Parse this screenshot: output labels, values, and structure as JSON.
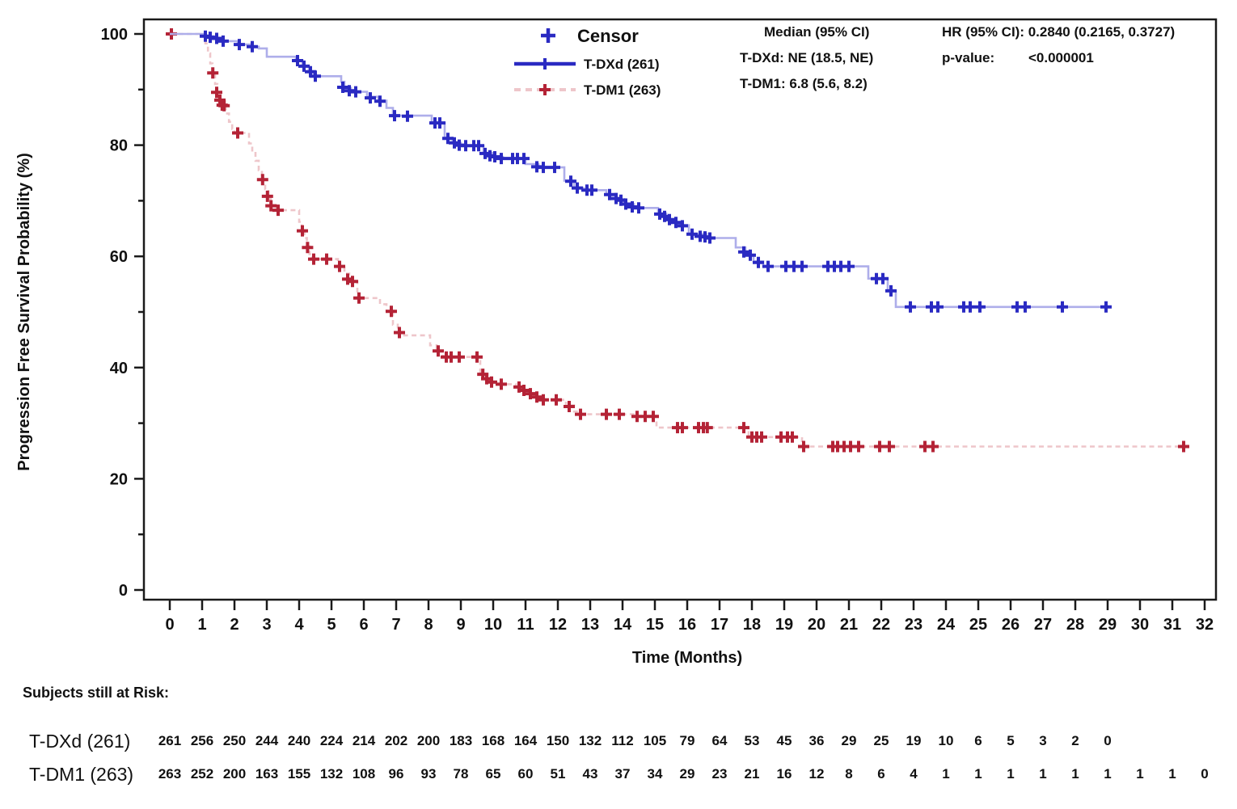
{
  "chart_data": {
    "type": "line",
    "subtype": "kaplan-meier-step",
    "title": "",
    "xlabel": "Time (Months)",
    "ylabel": "Progression Free Survival Probability (%)",
    "xlim": [
      0,
      32
    ],
    "ylim": [
      0,
      100
    ],
    "xticks": [
      0,
      1,
      2,
      3,
      4,
      5,
      6,
      7,
      8,
      9,
      10,
      11,
      12,
      13,
      14,
      15,
      16,
      17,
      18,
      19,
      20,
      21,
      22,
      23,
      24,
      25,
      26,
      27,
      28,
      29,
      30,
      31,
      32
    ],
    "yticks_major": [
      0,
      20,
      40,
      60,
      80,
      100
    ],
    "ytick_minor_step": 10,
    "grid": "off",
    "legend_position": "top-center",
    "legend": {
      "censor_symbol": "+",
      "censor_label": "Censor"
    },
    "stats": {
      "median_header": "Median (95% CI)",
      "median_tdxd": "T-DXd: NE (18.5, NE)",
      "median_tdm1": "T-DM1: 6.8 (5.6, 8.2)",
      "hr_line": "HR (95% CI): 0.2840 (0.2165, 0.3727)",
      "pvalue_label": "p-value:",
      "pvalue_value": "<0.000001"
    },
    "colors": {
      "tdxd_mark": "#2a2ac2",
      "tdxd_line": "#aeaeea",
      "tdm1_mark": "#b42336",
      "tdm1_line": "#eec6ca",
      "axis": "#1a1a1a"
    },
    "series": [
      {
        "name": "T-DXd (261)",
        "slug": "tdxd",
        "style": "solid",
        "mark_color": "#2a2ac2",
        "line_color": "#aeaeea",
        "end_time": 29.0,
        "steps": [
          [
            0,
            100
          ],
          [
            1.1,
            99.6
          ],
          [
            1.35,
            99.2
          ],
          [
            1.6,
            98.7
          ],
          [
            2.1,
            98.1
          ],
          [
            2.5,
            97.7
          ],
          [
            2.75,
            97.4
          ],
          [
            3.0,
            95.9
          ],
          [
            3.9,
            95.3
          ],
          [
            4.1,
            94.3
          ],
          [
            4.3,
            93.2
          ],
          [
            4.45,
            92.4
          ],
          [
            5.3,
            91.4
          ],
          [
            5.4,
            90.3
          ],
          [
            5.6,
            89.6
          ],
          [
            6.1,
            88.7
          ],
          [
            6.45,
            88.0
          ],
          [
            6.7,
            86.7
          ],
          [
            6.9,
            85.3
          ],
          [
            8.1,
            84.0
          ],
          [
            8.5,
            81.3
          ],
          [
            8.75,
            80.4
          ],
          [
            9.0,
            79.9
          ],
          [
            9.7,
            78.6
          ],
          [
            10.0,
            77.9
          ],
          [
            10.3,
            77.6
          ],
          [
            11.0,
            76.6
          ],
          [
            11.4,
            76.0
          ],
          [
            12.2,
            73.6
          ],
          [
            12.5,
            72.3
          ],
          [
            12.8,
            71.9
          ],
          [
            13.5,
            71.1
          ],
          [
            13.8,
            70.3
          ],
          [
            14.05,
            69.4
          ],
          [
            14.35,
            68.7
          ],
          [
            15.1,
            67.7
          ],
          [
            15.35,
            66.7
          ],
          [
            15.6,
            66.1
          ],
          [
            15.8,
            65.6
          ],
          [
            16.05,
            64.0
          ],
          [
            16.6,
            63.3
          ],
          [
            17.5,
            61.6
          ],
          [
            17.8,
            60.3
          ],
          [
            18.05,
            59.1
          ],
          [
            18.35,
            58.2
          ],
          [
            21.6,
            56.0
          ],
          [
            22.2,
            53.8
          ],
          [
            22.45,
            50.9
          ]
        ],
        "censors": [
          [
            1.1,
            99.6
          ],
          [
            1.25,
            99.4
          ],
          [
            1.45,
            99.2
          ],
          [
            1.65,
            98.7
          ],
          [
            2.15,
            98.1
          ],
          [
            2.55,
            97.7
          ],
          [
            3.95,
            95.2
          ],
          [
            4.15,
            94.2
          ],
          [
            4.35,
            93.2
          ],
          [
            4.5,
            92.4
          ],
          [
            5.35,
            90.4
          ],
          [
            5.55,
            89.8
          ],
          [
            5.75,
            89.6
          ],
          [
            6.2,
            88.5
          ],
          [
            6.5,
            87.9
          ],
          [
            6.95,
            85.3
          ],
          [
            7.35,
            85.2
          ],
          [
            8.2,
            84.0
          ],
          [
            8.35,
            84.0
          ],
          [
            8.6,
            81.2
          ],
          [
            8.8,
            80.4
          ],
          [
            8.95,
            80.0
          ],
          [
            9.15,
            79.9
          ],
          [
            9.4,
            79.9
          ],
          [
            9.55,
            79.9
          ],
          [
            9.75,
            78.5
          ],
          [
            9.9,
            78.1
          ],
          [
            10.05,
            77.9
          ],
          [
            10.25,
            77.6
          ],
          [
            10.6,
            77.6
          ],
          [
            10.75,
            77.6
          ],
          [
            10.95,
            77.6
          ],
          [
            11.35,
            76.1
          ],
          [
            11.55,
            76.0
          ],
          [
            11.9,
            76.0
          ],
          [
            12.4,
            73.5
          ],
          [
            12.6,
            72.3
          ],
          [
            12.9,
            71.9
          ],
          [
            13.05,
            71.9
          ],
          [
            13.6,
            71.1
          ],
          [
            13.8,
            70.4
          ],
          [
            13.95,
            70.1
          ],
          [
            14.1,
            69.4
          ],
          [
            14.3,
            68.9
          ],
          [
            14.5,
            68.7
          ],
          [
            15.15,
            67.6
          ],
          [
            15.3,
            67.2
          ],
          [
            15.45,
            66.6
          ],
          [
            15.65,
            66.1
          ],
          [
            15.85,
            65.5
          ],
          [
            16.15,
            64.0
          ],
          [
            16.4,
            63.6
          ],
          [
            16.55,
            63.5
          ],
          [
            16.7,
            63.3
          ],
          [
            17.75,
            60.8
          ],
          [
            17.95,
            60.2
          ],
          [
            18.2,
            58.9
          ],
          [
            18.5,
            58.2
          ],
          [
            19.05,
            58.2
          ],
          [
            19.3,
            58.2
          ],
          [
            19.55,
            58.2
          ],
          [
            20.35,
            58.2
          ],
          [
            20.55,
            58.2
          ],
          [
            20.75,
            58.2
          ],
          [
            21.0,
            58.2
          ],
          [
            21.85,
            56.0
          ],
          [
            22.05,
            56.0
          ],
          [
            22.3,
            53.8
          ],
          [
            22.9,
            50.9
          ],
          [
            23.55,
            50.9
          ],
          [
            23.75,
            50.9
          ],
          [
            24.55,
            50.9
          ],
          [
            24.75,
            50.9
          ],
          [
            25.05,
            50.9
          ],
          [
            26.2,
            50.9
          ],
          [
            26.45,
            50.9
          ],
          [
            27.6,
            50.9
          ],
          [
            28.95,
            50.9
          ]
        ]
      },
      {
        "name": "T-DM1 (263)",
        "slug": "tdm1",
        "style": "dashed",
        "mark_color": "#b42336",
        "line_color": "#eec6ca",
        "end_time": 31.35,
        "steps": [
          [
            0,
            100
          ],
          [
            1.0,
            99.6
          ],
          [
            1.1,
            98.3
          ],
          [
            1.18,
            96.5
          ],
          [
            1.25,
            94.7
          ],
          [
            1.32,
            93.0
          ],
          [
            1.4,
            91.0
          ],
          [
            1.47,
            89.4
          ],
          [
            1.54,
            88.1
          ],
          [
            1.63,
            87.1
          ],
          [
            1.73,
            85.7
          ],
          [
            1.83,
            84.2
          ],
          [
            1.93,
            82.9
          ],
          [
            2.0,
            82.2
          ],
          [
            2.45,
            80.3
          ],
          [
            2.55,
            78.8
          ],
          [
            2.65,
            77.2
          ],
          [
            2.75,
            75.5
          ],
          [
            2.85,
            73.8
          ],
          [
            2.95,
            72.1
          ],
          [
            3.05,
            70.3
          ],
          [
            3.12,
            69.1
          ],
          [
            3.3,
            68.3
          ],
          [
            4.0,
            66.2
          ],
          [
            4.08,
            64.8
          ],
          [
            4.16,
            63.3
          ],
          [
            4.24,
            61.8
          ],
          [
            4.32,
            60.4
          ],
          [
            4.4,
            59.5
          ],
          [
            5.2,
            58.2
          ],
          [
            5.4,
            56.9
          ],
          [
            5.55,
            55.5
          ],
          [
            5.8,
            52.5
          ],
          [
            6.5,
            51.4
          ],
          [
            6.7,
            50.2
          ],
          [
            6.9,
            47.7
          ],
          [
            7.05,
            46.3
          ],
          [
            7.2,
            45.8
          ],
          [
            8.05,
            44.0
          ],
          [
            8.25,
            43.0
          ],
          [
            8.45,
            41.9
          ],
          [
            9.6,
            38.9
          ],
          [
            9.8,
            37.8
          ],
          [
            9.95,
            37.2
          ],
          [
            10.2,
            37.0
          ],
          [
            10.7,
            36.5
          ],
          [
            10.9,
            35.9
          ],
          [
            11.1,
            35.3
          ],
          [
            11.3,
            34.7
          ],
          [
            11.5,
            34.2
          ],
          [
            12.25,
            33.2
          ],
          [
            12.5,
            32.1
          ],
          [
            12.65,
            31.6
          ],
          [
            14.4,
            31.2
          ],
          [
            15.05,
            29.2
          ],
          [
            17.9,
            27.5
          ],
          [
            19.55,
            25.8
          ]
        ],
        "censors": [
          [
            0.05,
            100
          ],
          [
            1.33,
            93.0
          ],
          [
            1.45,
            89.5
          ],
          [
            1.55,
            88.1
          ],
          [
            1.62,
            87.2
          ],
          [
            1.68,
            87.1
          ],
          [
            2.1,
            82.2
          ],
          [
            2.87,
            73.8
          ],
          [
            3.02,
            70.8
          ],
          [
            3.13,
            69.1
          ],
          [
            3.35,
            68.3
          ],
          [
            4.1,
            64.6
          ],
          [
            4.26,
            61.6
          ],
          [
            4.45,
            59.5
          ],
          [
            4.85,
            59.5
          ],
          [
            5.25,
            58.2
          ],
          [
            5.5,
            55.9
          ],
          [
            5.65,
            55.5
          ],
          [
            5.85,
            52.5
          ],
          [
            6.85,
            50.1
          ],
          [
            7.1,
            46.3
          ],
          [
            8.3,
            43.0
          ],
          [
            8.55,
            41.9
          ],
          [
            8.7,
            41.9
          ],
          [
            8.95,
            41.9
          ],
          [
            9.5,
            41.9
          ],
          [
            9.68,
            38.8
          ],
          [
            9.8,
            38.0
          ],
          [
            9.95,
            37.4
          ],
          [
            10.25,
            37.0
          ],
          [
            10.8,
            36.5
          ],
          [
            10.95,
            35.9
          ],
          [
            11.15,
            35.3
          ],
          [
            11.35,
            34.7
          ],
          [
            11.55,
            34.2
          ],
          [
            11.95,
            34.2
          ],
          [
            12.35,
            33.0
          ],
          [
            12.7,
            31.6
          ],
          [
            13.5,
            31.6
          ],
          [
            13.9,
            31.6
          ],
          [
            14.45,
            31.2
          ],
          [
            14.7,
            31.2
          ],
          [
            14.95,
            31.2
          ],
          [
            15.7,
            29.2
          ],
          [
            15.85,
            29.2
          ],
          [
            16.35,
            29.2
          ],
          [
            16.5,
            29.2
          ],
          [
            16.62,
            29.2
          ],
          [
            17.75,
            29.2
          ],
          [
            18.0,
            27.5
          ],
          [
            18.15,
            27.5
          ],
          [
            18.3,
            27.5
          ],
          [
            18.9,
            27.5
          ],
          [
            19.1,
            27.5
          ],
          [
            19.25,
            27.5
          ],
          [
            19.6,
            25.8
          ],
          [
            20.5,
            25.8
          ],
          [
            20.65,
            25.8
          ],
          [
            20.85,
            25.8
          ],
          [
            21.05,
            25.8
          ],
          [
            21.3,
            25.8
          ],
          [
            21.95,
            25.8
          ],
          [
            22.25,
            25.8
          ],
          [
            23.35,
            25.8
          ],
          [
            23.6,
            25.8
          ],
          [
            31.35,
            25.8
          ]
        ]
      }
    ],
    "at_risk": {
      "header": "Subjects still at Risk:",
      "rows": [
        {
          "label": "T-DXd (261)",
          "values": [
            261,
            256,
            250,
            244,
            240,
            224,
            214,
            202,
            200,
            183,
            168,
            164,
            150,
            132,
            112,
            105,
            79,
            64,
            53,
            45,
            36,
            29,
            25,
            19,
            10,
            6,
            5,
            3,
            2,
            0
          ]
        },
        {
          "label": "T-DM1 (263)",
          "values": [
            263,
            252,
            200,
            163,
            155,
            132,
            108,
            96,
            93,
            78,
            65,
            60,
            51,
            43,
            37,
            34,
            29,
            23,
            21,
            16,
            12,
            8,
            6,
            4,
            1,
            1,
            1,
            1,
            1,
            1,
            1,
            1,
            0
          ]
        }
      ]
    }
  }
}
